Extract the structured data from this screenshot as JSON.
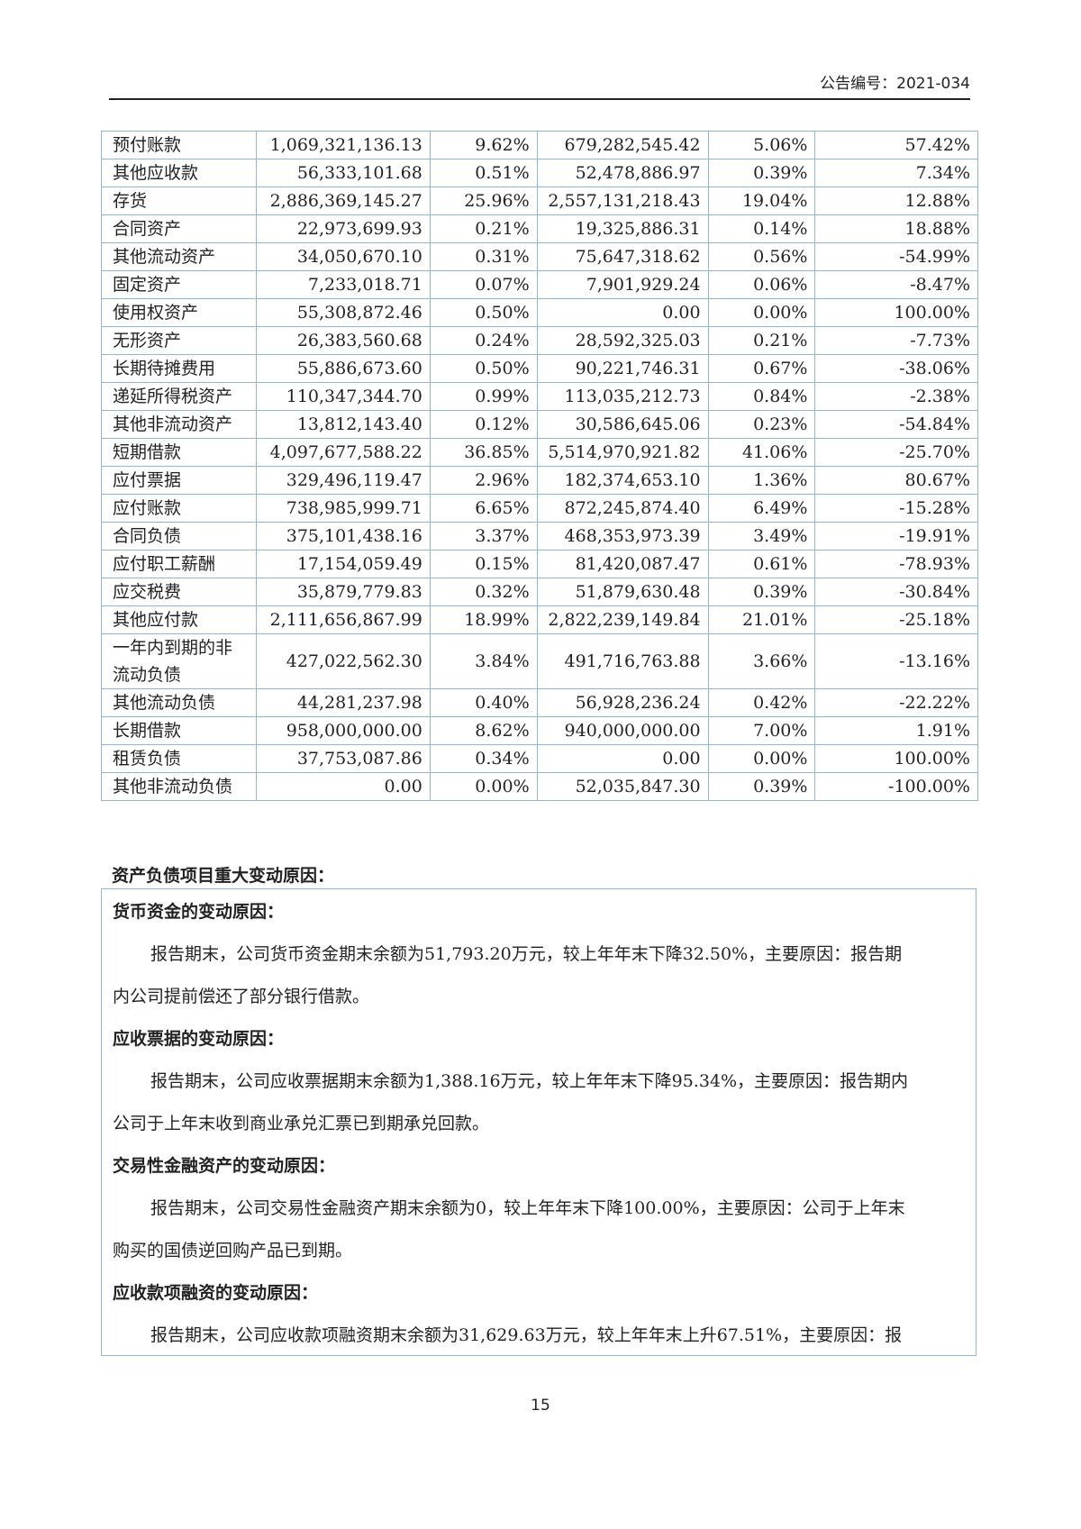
{
  "header": {
    "announcement_no": "公告编号：2021-034"
  },
  "table": {
    "rows": [
      [
        "预付账款",
        "1,069,321,136.13",
        "9.62%",
        "679,282,545.42",
        "5.06%",
        "57.42%"
      ],
      [
        "其他应收款",
        "56,333,101.68",
        "0.51%",
        "52,478,886.97",
        "0.39%",
        "7.34%"
      ],
      [
        "存货",
        "2,886,369,145.27",
        "25.96%",
        "2,557,131,218.43",
        "19.04%",
        "12.88%"
      ],
      [
        "合同资产",
        "22,973,699.93",
        "0.21%",
        "19,325,886.31",
        "0.14%",
        "18.88%"
      ],
      [
        "其他流动资产",
        "34,050,670.10",
        "0.31%",
        "75,647,318.62",
        "0.56%",
        "-54.99%"
      ],
      [
        "固定资产",
        "7,233,018.71",
        "0.07%",
        "7,901,929.24",
        "0.06%",
        "-8.47%"
      ],
      [
        "使用权资产",
        "55,308,872.46",
        "0.50%",
        "0.00",
        "0.00%",
        "100.00%"
      ],
      [
        "无形资产",
        "26,383,560.68",
        "0.24%",
        "28,592,325.03",
        "0.21%",
        "-7.73%"
      ],
      [
        "长期待摊费用",
        "55,886,673.60",
        "0.50%",
        "90,221,746.31",
        "0.67%",
        "-38.06%"
      ],
      [
        "递延所得税资产",
        "110,347,344.70",
        "0.99%",
        "113,035,212.73",
        "0.84%",
        "-2.38%"
      ],
      [
        "其他非流动资产",
        "13,812,143.40",
        "0.12%",
        "30,586,645.06",
        "0.23%",
        "-54.84%"
      ],
      [
        "短期借款",
        "4,097,677,588.22",
        "36.85%",
        "5,514,970,921.82",
        "41.06%",
        "-25.70%"
      ],
      [
        "应付票据",
        "329,496,119.47",
        "2.96%",
        "182,374,653.10",
        "1.36%",
        "80.67%"
      ],
      [
        "应付账款",
        "738,985,999.71",
        "6.65%",
        "872,245,874.40",
        "6.49%",
        "-15.28%"
      ],
      [
        "合同负债",
        "375,101,438.16",
        "3.37%",
        "468,353,973.39",
        "3.49%",
        "-19.91%"
      ],
      [
        "应付职工薪酬",
        "17,154,059.49",
        "0.15%",
        "81,420,087.47",
        "0.61%",
        "-78.93%"
      ],
      [
        "应交税费",
        "35,879,779.83",
        "0.32%",
        "51,879,630.48",
        "0.39%",
        "-30.84%"
      ],
      [
        "其他应付款",
        "2,111,656,867.99",
        "18.99%",
        "2,822,239,149.84",
        "21.01%",
        "-25.18%"
      ],
      [
        "一年内到期的非流动负债",
        "427,022,562.30",
        "3.84%",
        "491,716,763.88",
        "3.66%",
        "-13.16%"
      ],
      [
        "其他流动负债",
        "44,281,237.98",
        "0.40%",
        "56,928,236.24",
        "0.42%",
        "-22.22%"
      ],
      [
        "长期借款",
        "958,000,000.00",
        "8.62%",
        "940,000,000.00",
        "7.00%",
        "1.91%"
      ],
      [
        "租赁负债",
        "37,753,087.86",
        "0.34%",
        "0.00",
        "0.00%",
        "100.00%"
      ],
      [
        "其他非流动负债",
        "0.00",
        "0.00%",
        "52,035,847.30",
        "0.39%",
        "-100.00%"
      ]
    ]
  },
  "section_title": "资产负债项目重大变动原因：",
  "box": [
    {
      "type": "b",
      "text": "货币资金的变动原因："
    },
    {
      "type": "ind",
      "text": "报告期末，公司货币资金期末余额为51,793.20万元，较上年年末下降32.50%，主要原因：报告期"
    },
    {
      "type": "n",
      "text": "内公司提前偿还了部分银行借款。"
    },
    {
      "type": "b",
      "text": "应收票据的变动原因："
    },
    {
      "type": "ind",
      "text": "报告期末，公司应收票据期末余额为1,388.16万元，较上年年末下降95.34%，主要原因：报告期内"
    },
    {
      "type": "n",
      "text": "公司于上年末收到商业承兑汇票已到期承兑回款。"
    },
    {
      "type": "b",
      "text": "交易性金融资产的变动原因："
    },
    {
      "type": "ind",
      "text": "报告期末，公司交易性金融资产期末余额为0，较上年年末下降100.00%，主要原因：公司于上年末"
    },
    {
      "type": "n",
      "text": "购买的国债逆回购产品已到期。"
    },
    {
      "type": "b",
      "text": "应收款项融资的变动原因："
    },
    {
      "type": "ind",
      "text": "报告期末，公司应收款项融资期末余额为31,629.63万元，较上年年末上升67.51%，主要原因：报"
    }
  ],
  "page_number": "15"
}
